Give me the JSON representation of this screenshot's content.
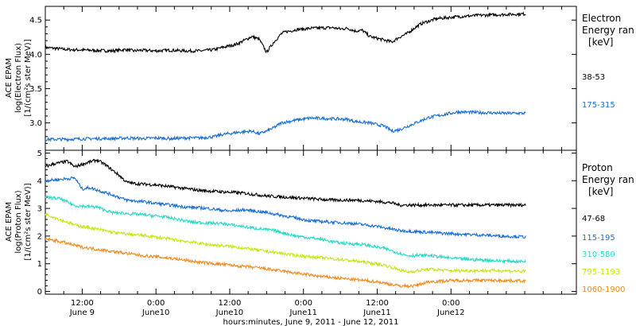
{
  "chart_data": [
    {
      "type": "scatter",
      "panel": "electron",
      "ylabel_lines": [
        "ACE EPAM",
        "log(Electron Flux)",
        "[1/(cm²s ster MeV)]"
      ],
      "ylim": [
        2.6,
        4.7
      ],
      "yticks": [
        3.0,
        3.5,
        4.0,
        4.5
      ],
      "ytick_labels": [
        "3.0",
        "3.5",
        "4.0",
        "4.5"
      ],
      "legend_title": [
        "Electron",
        "Energy ran",
        "[keV]"
      ],
      "series": [
        {
          "name": "38-53",
          "color": "#000000",
          "x": [
            0.0,
            0.15,
            0.3,
            0.45,
            0.5,
            0.55,
            0.6,
            0.65,
            0.75,
            0.85,
            0.95,
            1.05,
            1.15,
            1.2,
            1.3,
            1.4,
            1.45,
            1.5,
            1.55,
            1.6,
            1.63,
            1.66,
            1.7,
            1.8,
            1.95,
            2.0,
            2.05,
            2.1,
            2.15,
            2.2,
            2.35,
            2.4,
            2.45,
            2.5,
            2.55,
            2.65,
            2.8,
            2.95,
            3.1,
            3.26
          ],
          "y": [
            4.1,
            4.07,
            4.06,
            4.05,
            4.06,
            4.07,
            4.05,
            4.06,
            4.05,
            4.06,
            4.05,
            4.05,
            4.07,
            4.1,
            4.15,
            4.26,
            4.22,
            4.03,
            4.18,
            4.3,
            4.33,
            4.34,
            4.36,
            4.38,
            4.39,
            4.37,
            4.38,
            4.34,
            4.35,
            4.26,
            4.18,
            4.25,
            4.3,
            4.38,
            4.45,
            4.52,
            4.55,
            4.57,
            4.58,
            4.59
          ]
        },
        {
          "name": "175-315",
          "color": "#1a6fd6",
          "x": [
            0.0,
            0.15,
            0.3,
            0.45,
            0.55,
            0.65,
            0.75,
            0.85,
            0.95,
            1.05,
            1.15,
            1.2,
            1.3,
            1.4,
            1.45,
            1.5,
            1.55,
            1.6,
            1.7,
            1.8,
            1.95,
            2.05,
            2.1,
            2.2,
            2.3,
            2.35,
            2.4,
            2.5,
            2.6,
            2.7,
            2.8,
            2.95,
            3.1,
            3.26
          ],
          "y": [
            2.76,
            2.76,
            2.77,
            2.77,
            2.78,
            2.77,
            2.78,
            2.77,
            2.78,
            2.78,
            2.8,
            2.83,
            2.86,
            2.88,
            2.84,
            2.88,
            2.93,
            3.0,
            3.04,
            3.07,
            3.06,
            3.05,
            3.02,
            3.0,
            2.95,
            2.88,
            2.9,
            2.99,
            3.08,
            3.12,
            3.16,
            3.15,
            3.14,
            3.14
          ]
        }
      ]
    },
    {
      "type": "scatter",
      "panel": "proton",
      "ylabel_lines": [
        "ACE EPAM",
        "log(Proton Flux)",
        "[1/(cm²s ster MeV)]"
      ],
      "ylim": [
        -0.1,
        5.1
      ],
      "yticks": [
        0,
        1,
        2,
        3,
        4,
        5
      ],
      "ytick_labels": [
        "0",
        "1",
        "2",
        "3",
        "4",
        "5"
      ],
      "legend_title": [
        "Proton",
        "Energy ran",
        "[keV]"
      ],
      "series": [
        {
          "name": "47-68",
          "color": "#000000",
          "x": [
            0.0,
            0.05,
            0.15,
            0.2,
            0.25,
            0.35,
            0.4,
            0.45,
            0.5,
            0.55,
            0.6,
            0.75,
            0.9,
            1.05,
            1.2,
            1.35,
            1.5,
            1.65,
            1.8,
            1.95,
            2.1,
            2.25,
            2.35,
            2.4,
            2.55,
            2.7,
            2.9,
            3.1,
            3.26
          ],
          "y": [
            4.5,
            4.6,
            4.7,
            4.5,
            4.6,
            4.75,
            4.6,
            4.4,
            4.2,
            3.95,
            3.9,
            3.85,
            3.75,
            3.65,
            3.6,
            3.55,
            3.45,
            3.4,
            3.35,
            3.3,
            3.3,
            3.25,
            3.2,
            3.12,
            3.12,
            3.12,
            3.12,
            3.12,
            3.12
          ]
        },
        {
          "name": "115-195",
          "color": "#1a6fd6",
          "x": [
            0.0,
            0.1,
            0.2,
            0.25,
            0.3,
            0.45,
            0.55,
            0.65,
            0.8,
            0.95,
            1.1,
            1.25,
            1.35,
            1.5,
            1.65,
            1.8,
            1.95,
            2.1,
            2.25,
            2.4,
            2.55,
            2.7,
            2.9,
            3.1,
            3.26
          ],
          "y": [
            4.0,
            4.05,
            4.1,
            3.7,
            3.75,
            3.5,
            3.3,
            3.25,
            3.15,
            3.05,
            3.0,
            2.9,
            2.95,
            2.85,
            2.7,
            2.55,
            2.5,
            2.45,
            2.35,
            2.2,
            2.15,
            2.1,
            2.05,
            2.0,
            1.97
          ]
        },
        {
          "name": "310-580",
          "color": "#28d9c8",
          "x": [
            0.0,
            0.1,
            0.2,
            0.35,
            0.45,
            0.6,
            0.8,
            1.0,
            1.2,
            1.4,
            1.55,
            1.7,
            1.85,
            2.0,
            2.15,
            2.3,
            2.45,
            2.6,
            2.75,
            2.9,
            3.1,
            3.26
          ],
          "y": [
            3.4,
            3.35,
            3.1,
            3.05,
            2.85,
            2.8,
            2.7,
            2.5,
            2.45,
            2.3,
            2.2,
            2.0,
            1.9,
            1.75,
            1.7,
            1.55,
            1.3,
            1.3,
            1.2,
            1.15,
            1.1,
            1.08
          ]
        },
        {
          "name": "795-1193",
          "color": "#c8e614",
          "x": [
            0.0,
            0.1,
            0.2,
            0.35,
            0.5,
            0.7,
            0.9,
            1.1,
            1.3,
            1.5,
            1.7,
            1.9,
            2.1,
            2.3,
            2.45,
            2.6,
            2.75,
            2.9,
            3.1,
            3.26
          ],
          "y": [
            2.8,
            2.6,
            2.4,
            2.25,
            2.1,
            2.0,
            1.85,
            1.7,
            1.6,
            1.45,
            1.3,
            1.2,
            1.1,
            0.95,
            0.7,
            0.8,
            0.75,
            0.75,
            0.75,
            0.72
          ]
        },
        {
          "name": "1060-1900",
          "color": "#f08a1c",
          "x": [
            0.0,
            0.1,
            0.25,
            0.45,
            0.65,
            0.85,
            1.05,
            1.25,
            1.45,
            1.65,
            1.85,
            2.05,
            2.25,
            2.4,
            2.5,
            2.6,
            2.8,
            3.0,
            3.26
          ],
          "y": [
            1.9,
            1.8,
            1.6,
            1.45,
            1.3,
            1.2,
            1.05,
            0.95,
            0.85,
            0.7,
            0.55,
            0.45,
            0.35,
            0.2,
            0.2,
            0.35,
            0.4,
            0.4,
            0.38
          ]
        }
      ]
    }
  ],
  "x_axis": {
    "range_days": [
      0.0,
      3.6
    ],
    "major_ticks": [
      0.25,
      0.75,
      1.25,
      1.75,
      2.25,
      2.75
    ],
    "minor_step": 0.125,
    "labels": [
      {
        "x": 0.25,
        "time": "12:00",
        "date": "June 9"
      },
      {
        "x": 0.75,
        "time": "0:00",
        "date": "June10"
      },
      {
        "x": 1.25,
        "time": "12:00",
        "date": "June10"
      },
      {
        "x": 1.75,
        "time": "0:00",
        "date": "June11"
      },
      {
        "x": 2.25,
        "time": "12:00",
        "date": "June11"
      },
      {
        "x": 2.75,
        "time": "0:00",
        "date": "June12"
      }
    ],
    "title": "hours:minutes, June  9, 2011 - June 12, 2011"
  }
}
